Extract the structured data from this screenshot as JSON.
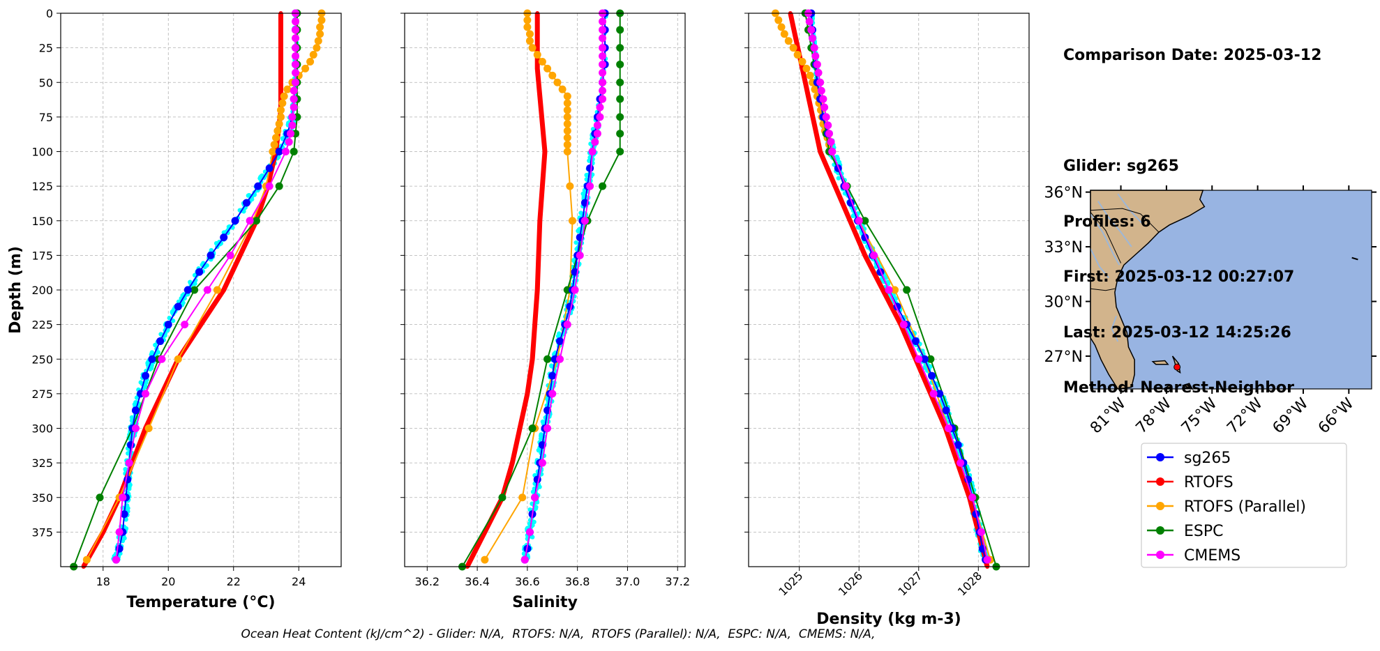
{
  "info": {
    "lines": [
      "Comparison Date: 2025-03-12",
      "",
      "Glider: sg265",
      "Profiles: 6",
      "First: 2025-03-12 00:27:07",
      "Last: 2025-03-12 14:25:26",
      "Method: Nearest-Neighbor"
    ]
  },
  "footer": "Ocean Heat Content (kJ/cm^2) - Glider: N/A,  RTOFS: N/A,  RTOFS (Parallel): N/A,  ESPC: N/A,  CMEMS: N/A,",
  "colors": {
    "sg265": "#0000ff",
    "RTOFS": "#ff0000",
    "RTOFS (Parallel)": "#ffa500",
    "ESPC": "#008000",
    "CMEMS": "#ff00ff",
    "glider_scatter": "#00ffff",
    "ocean": "#98b4e2",
    "land": "#d2b48c",
    "rivers": "#9db7d8"
  },
  "legend": [
    "sg265",
    "RTOFS",
    "RTOFS (Parallel)",
    "ESPC",
    "CMEMS"
  ],
  "chart_data": [
    {
      "type": "line",
      "panel": "temperature",
      "xlabel": "Temperature (°C)",
      "ylabel": "Depth (m)",
      "xlim": [
        16.7,
        25.3
      ],
      "ylim": [
        400,
        0
      ],
      "y_inverted": true,
      "xticks": [
        18,
        20,
        22,
        24
      ],
      "yticks": [
        0,
        25,
        50,
        75,
        100,
        125,
        150,
        175,
        200,
        225,
        250,
        275,
        300,
        325,
        350,
        375
      ],
      "grid": true,
      "series": [
        {
          "name": "sg265",
          "style": "line-marker",
          "depth": [
            0,
            12,
            25,
            37,
            50,
            62,
            75,
            87,
            100,
            112,
            125,
            137,
            150,
            162,
            175,
            187,
            200,
            212,
            225,
            237,
            250,
            262,
            275,
            287,
            300,
            312,
            325,
            337,
            350,
            362,
            375,
            387,
            395
          ],
          "values": [
            23.9,
            23.9,
            23.9,
            23.9,
            23.9,
            23.85,
            23.8,
            23.65,
            23.4,
            23.1,
            22.75,
            22.4,
            22.05,
            21.7,
            21.3,
            20.95,
            20.6,
            20.3,
            20.0,
            19.75,
            19.5,
            19.3,
            19.15,
            19.0,
            18.9,
            18.85,
            18.8,
            18.75,
            18.7,
            18.65,
            18.6,
            18.5,
            18.4
          ]
        },
        {
          "name": "RTOFS",
          "style": "thick-line",
          "depth": [
            0,
            10,
            20,
            30,
            40,
            50,
            60,
            70,
            80,
            90,
            100,
            125,
            150,
            175,
            200,
            225,
            250,
            275,
            300,
            325,
            350,
            375,
            400
          ],
          "values": [
            23.45,
            23.45,
            23.45,
            23.45,
            23.45,
            23.45,
            23.45,
            23.45,
            23.4,
            23.35,
            23.3,
            23.05,
            22.7,
            22.2,
            21.7,
            21.0,
            20.3,
            19.8,
            19.3,
            18.9,
            18.5,
            18.0,
            17.4
          ]
        },
        {
          "name": "RTOFS (Parallel)",
          "style": "line-marker",
          "depth": [
            0,
            5,
            10,
            15,
            20,
            25,
            30,
            35,
            40,
            45,
            50,
            55,
            60,
            65,
            70,
            75,
            80,
            85,
            90,
            95,
            100,
            125,
            150,
            200,
            250,
            300,
            350,
            395
          ],
          "values": [
            24.7,
            24.7,
            24.65,
            24.65,
            24.6,
            24.55,
            24.45,
            24.35,
            24.2,
            24.0,
            23.8,
            23.65,
            23.55,
            23.5,
            23.45,
            23.45,
            23.4,
            23.35,
            23.3,
            23.25,
            23.2,
            23.0,
            22.6,
            21.5,
            20.3,
            19.4,
            18.5,
            17.5
          ]
        },
        {
          "name": "ESPC",
          "style": "line-marker",
          "depth": [
            0,
            12,
            25,
            37,
            50,
            62,
            75,
            87,
            100,
            125,
            150,
            200,
            250,
            300,
            350,
            400
          ],
          "values": [
            23.95,
            23.95,
            23.95,
            23.95,
            23.95,
            23.95,
            23.95,
            23.9,
            23.85,
            23.4,
            22.7,
            20.8,
            19.7,
            18.9,
            17.9,
            17.1
          ]
        },
        {
          "name": "CMEMS",
          "style": "line-marker",
          "depth": [
            0,
            6,
            12,
            18,
            25,
            31,
            37,
            43,
            50,
            56,
            62,
            68,
            75,
            81,
            87,
            93,
            100,
            125,
            150,
            175,
            200,
            225,
            250,
            275,
            300,
            325,
            350,
            375,
            395
          ],
          "values": [
            23.9,
            23.9,
            23.9,
            23.9,
            23.9,
            23.9,
            23.9,
            23.9,
            23.9,
            23.85,
            23.85,
            23.85,
            23.8,
            23.8,
            23.75,
            23.7,
            23.6,
            23.1,
            22.5,
            21.9,
            21.2,
            20.5,
            19.8,
            19.3,
            19.0,
            18.8,
            18.6,
            18.5,
            18.4
          ]
        }
      ]
    },
    {
      "type": "line",
      "panel": "salinity",
      "xlabel": "Salinity",
      "xlim": [
        36.11,
        37.23
      ],
      "ylim": [
        400,
        0
      ],
      "y_inverted": true,
      "xticks": [
        36.2,
        36.4,
        36.6,
        36.8,
        37.0,
        37.2
      ],
      "grid": true,
      "series": [
        {
          "name": "sg265",
          "style": "line-marker",
          "depth": [
            0,
            12,
            25,
            37,
            50,
            62,
            75,
            87,
            100,
            112,
            125,
            137,
            150,
            162,
            175,
            187,
            200,
            212,
            225,
            237,
            250,
            262,
            275,
            287,
            300,
            312,
            325,
            337,
            350,
            362,
            375,
            387,
            395
          ],
          "values": [
            36.91,
            36.91,
            36.91,
            36.91,
            36.9,
            36.89,
            36.88,
            36.87,
            36.86,
            36.85,
            36.84,
            36.83,
            36.82,
            36.81,
            36.8,
            36.79,
            36.78,
            36.77,
            36.75,
            36.73,
            36.71,
            36.7,
            36.69,
            36.68,
            36.67,
            36.66,
            36.65,
            36.64,
            36.63,
            36.62,
            36.61,
            36.6,
            36.59
          ]
        },
        {
          "name": "RTOFS",
          "style": "thick-line",
          "depth": [
            0,
            10,
            20,
            30,
            40,
            50,
            60,
            70,
            80,
            90,
            100,
            125,
            150,
            175,
            200,
            225,
            250,
            275,
            300,
            325,
            350,
            375,
            400
          ],
          "values": [
            36.64,
            36.64,
            36.64,
            36.64,
            36.64,
            36.645,
            36.65,
            36.655,
            36.66,
            36.665,
            36.67,
            36.66,
            36.65,
            36.645,
            36.64,
            36.63,
            36.62,
            36.6,
            36.57,
            36.54,
            36.5,
            36.43,
            36.36
          ]
        },
        {
          "name": "RTOFS (Parallel)",
          "style": "line-marker",
          "depth": [
            0,
            5,
            10,
            15,
            20,
            25,
            30,
            35,
            40,
            45,
            50,
            55,
            60,
            65,
            70,
            75,
            80,
            85,
            90,
            95,
            100,
            125,
            150,
            200,
            250,
            300,
            350,
            395
          ],
          "values": [
            36.6,
            36.6,
            36.6,
            36.61,
            36.61,
            36.62,
            36.64,
            36.66,
            36.68,
            36.7,
            36.72,
            36.74,
            36.76,
            36.76,
            36.76,
            36.76,
            36.76,
            36.76,
            36.76,
            36.76,
            36.76,
            36.77,
            36.78,
            36.77,
            36.72,
            36.63,
            36.58,
            36.43
          ]
        },
        {
          "name": "ESPC",
          "style": "line-marker",
          "depth": [
            0,
            12,
            25,
            37,
            50,
            62,
            75,
            87,
            100,
            125,
            150,
            200,
            250,
            300,
            350,
            400
          ],
          "values": [
            36.97,
            36.97,
            36.97,
            36.97,
            36.97,
            36.97,
            36.97,
            36.97,
            36.97,
            36.9,
            36.84,
            36.76,
            36.68,
            36.62,
            36.5,
            36.34
          ]
        },
        {
          "name": "CMEMS",
          "style": "line-marker",
          "depth": [
            0,
            6,
            12,
            18,
            25,
            31,
            37,
            43,
            50,
            56,
            62,
            68,
            75,
            81,
            87,
            93,
            100,
            125,
            150,
            175,
            200,
            225,
            250,
            275,
            300,
            325,
            350,
            375,
            395
          ],
          "values": [
            36.9,
            36.9,
            36.9,
            36.9,
            36.9,
            36.9,
            36.9,
            36.9,
            36.9,
            36.9,
            36.9,
            36.89,
            36.89,
            36.88,
            36.88,
            36.87,
            36.86,
            36.85,
            36.83,
            36.81,
            36.79,
            36.76,
            36.73,
            36.7,
            36.68,
            36.66,
            36.63,
            36.61,
            36.59
          ]
        }
      ]
    },
    {
      "type": "line",
      "panel": "density",
      "xlabel": "Density (kg m-3)",
      "xlim": [
        1024.15,
        1028.85
      ],
      "ylim": [
        400,
        0
      ],
      "y_inverted": true,
      "xticks": [
        1025,
        1026,
        1027,
        1028
      ],
      "grid": true,
      "series": [
        {
          "name": "sg265",
          "style": "line-marker",
          "depth": [
            0,
            12,
            25,
            37,
            50,
            62,
            75,
            87,
            100,
            112,
            125,
            137,
            150,
            162,
            175,
            187,
            200,
            212,
            225,
            237,
            250,
            262,
            275,
            287,
            300,
            312,
            325,
            337,
            350,
            362,
            375,
            387,
            395
          ],
          "values": [
            1025.2,
            1025.22,
            1025.25,
            1025.28,
            1025.3,
            1025.35,
            1025.4,
            1025.48,
            1025.55,
            1025.65,
            1025.75,
            1025.86,
            1025.98,
            1026.1,
            1026.23,
            1026.36,
            1026.5,
            1026.64,
            1026.8,
            1026.95,
            1027.1,
            1027.22,
            1027.35,
            1027.46,
            1027.56,
            1027.66,
            1027.75,
            1027.83,
            1027.9,
            1027.96,
            1028.02,
            1028.07,
            1028.12
          ]
        },
        {
          "name": "RTOFS",
          "style": "thick-line",
          "depth": [
            0,
            10,
            20,
            30,
            40,
            50,
            60,
            70,
            80,
            90,
            100,
            125,
            150,
            175,
            200,
            225,
            250,
            275,
            300,
            325,
            350,
            375,
            400
          ],
          "values": [
            1024.85,
            1024.9,
            1024.95,
            1025.0,
            1025.05,
            1025.1,
            1025.15,
            1025.2,
            1025.25,
            1025.3,
            1025.35,
            1025.6,
            1025.85,
            1026.1,
            1026.4,
            1026.7,
            1026.95,
            1027.2,
            1027.45,
            1027.65,
            1027.85,
            1028.0,
            1028.15
          ]
        },
        {
          "name": "RTOFS (Parallel)",
          "style": "line-marker",
          "depth": [
            0,
            5,
            10,
            15,
            20,
            25,
            30,
            35,
            40,
            45,
            50,
            55,
            60,
            65,
            70,
            75,
            80,
            85,
            90,
            95,
            100,
            125,
            150,
            200,
            250,
            300,
            350,
            395
          ],
          "values": [
            1024.6,
            1024.65,
            1024.7,
            1024.75,
            1024.82,
            1024.9,
            1024.97,
            1025.05,
            1025.12,
            1025.18,
            1025.22,
            1025.26,
            1025.3,
            1025.33,
            1025.36,
            1025.38,
            1025.4,
            1025.43,
            1025.47,
            1025.5,
            1025.55,
            1025.75,
            1026.0,
            1026.6,
            1027.1,
            1027.5,
            1027.9,
            1028.2
          ]
        },
        {
          "name": "ESPC",
          "style": "line-marker",
          "depth": [
            0,
            12,
            25,
            37,
            50,
            62,
            75,
            87,
            100,
            125,
            150,
            200,
            250,
            300,
            350,
            400
          ],
          "values": [
            1025.1,
            1025.15,
            1025.2,
            1025.25,
            1025.3,
            1025.35,
            1025.4,
            1025.45,
            1025.5,
            1025.8,
            1026.1,
            1026.8,
            1027.2,
            1027.6,
            1027.95,
            1028.3
          ]
        },
        {
          "name": "CMEMS",
          "style": "line-marker",
          "depth": [
            0,
            6,
            12,
            18,
            25,
            31,
            37,
            43,
            50,
            56,
            62,
            68,
            75,
            81,
            87,
            93,
            100,
            125,
            150,
            175,
            200,
            225,
            250,
            275,
            300,
            325,
            350,
            375,
            395
          ],
          "values": [
            1025.15,
            1025.17,
            1025.2,
            1025.22,
            1025.25,
            1025.27,
            1025.3,
            1025.32,
            1025.35,
            1025.37,
            1025.4,
            1025.42,
            1025.45,
            1025.48,
            1025.5,
            1025.53,
            1025.55,
            1025.78,
            1026.0,
            1026.25,
            1026.5,
            1026.75,
            1027.0,
            1027.25,
            1027.5,
            1027.7,
            1027.9,
            1028.05,
            1028.15
          ]
        }
      ]
    }
  ],
  "map": {
    "xticks": [
      "81°W",
      "78°W",
      "75°W",
      "72°W",
      "69°W",
      "66°W"
    ],
    "yticks": [
      "36°N",
      "33°N",
      "30°N",
      "27°N"
    ],
    "lon_range": [
      -83,
      -64.5
    ],
    "lat_range": [
      25.2,
      36.1
    ],
    "glider_position": {
      "lon": -77.3,
      "lat": 26.4
    }
  }
}
